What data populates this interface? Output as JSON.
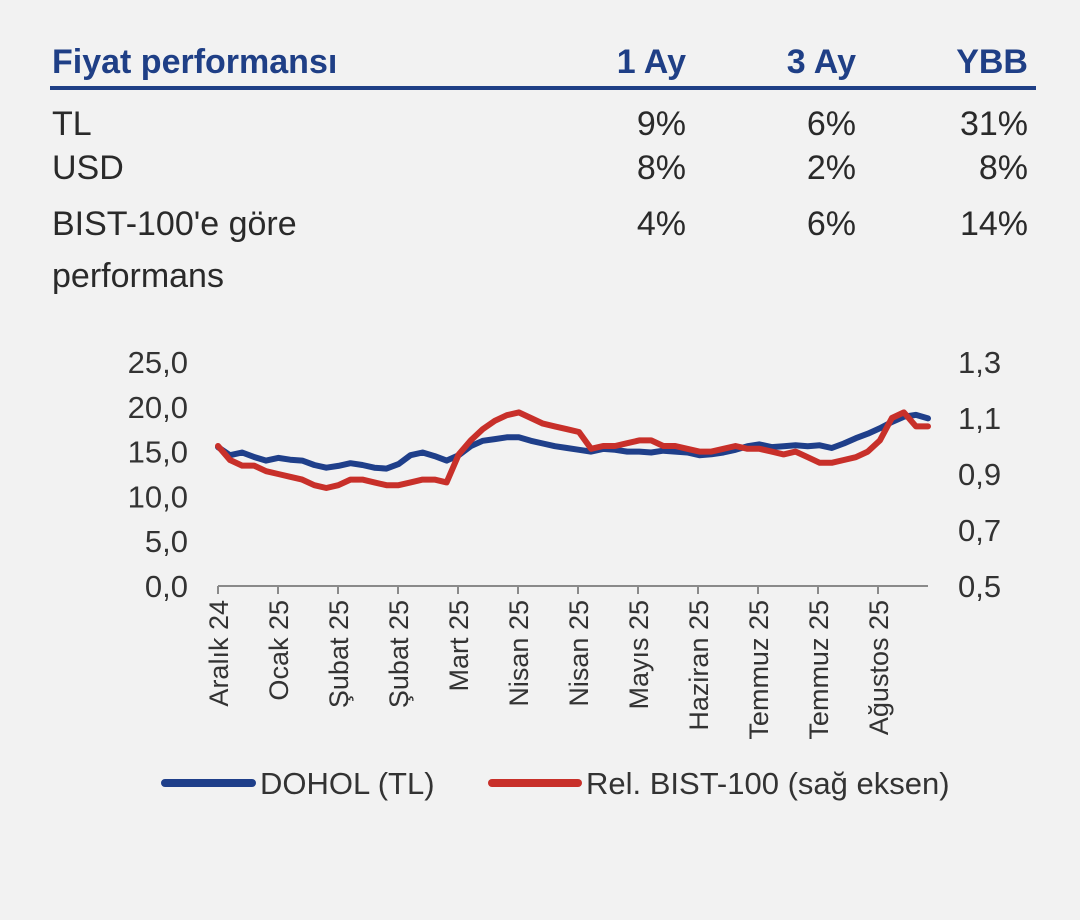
{
  "table": {
    "header": {
      "label": "Fiyat performansı",
      "cols": [
        "1 Ay",
        "3 Ay",
        "YBB"
      ]
    },
    "rows": [
      {
        "label": "TL",
        "values": [
          "9%",
          "6%",
          "31%"
        ]
      },
      {
        "label": "USD",
        "values": [
          "8%",
          "2%",
          "8%"
        ]
      },
      {
        "label": "BIST-100'e göre performans",
        "values": [
          "4%",
          "6%",
          "14%"
        ]
      }
    ]
  },
  "chart_data": {
    "type": "line",
    "x_tick_labels": [
      "Aralık 24",
      "Ocak 25",
      "Şubat 25",
      "Şubat 25",
      "Mart 25",
      "Nisan 25",
      "Nisan 25",
      "Mayıs 25",
      "Haziran 25",
      "Temmuz 25",
      "Temmuz 25",
      "Ağustos 25"
    ],
    "y_left": {
      "ticks": [
        "25,0",
        "20,0",
        "15,0",
        "10,0",
        "5,0",
        "0,0"
      ],
      "range": [
        0,
        25
      ]
    },
    "y_right": {
      "ticks": [
        "1,3",
        "1,1",
        "0,9",
        "0,7",
        "0,5"
      ],
      "range": [
        0.5,
        1.3
      ]
    },
    "grid": false,
    "legend_position": "bottom",
    "colors": {
      "dohol": "#1f3f8a",
      "rel": "#c8302a"
    },
    "series": [
      {
        "name": "DOHOL (TL)",
        "axis": "left",
        "x": [
          0,
          0.2,
          0.4,
          0.6,
          0.8,
          1.0,
          1.2,
          1.4,
          1.6,
          1.8,
          2.0,
          2.2,
          2.4,
          2.6,
          2.8,
          3.0,
          3.2,
          3.4,
          3.6,
          3.8,
          4.0,
          4.2,
          4.4,
          4.6,
          4.8,
          5.0,
          5.2,
          5.4,
          5.6,
          5.8,
          6.0,
          6.2,
          6.4,
          6.6,
          6.8,
          7.0,
          7.2,
          7.4,
          7.6,
          7.8,
          8.0,
          8.2,
          8.4,
          8.6,
          8.8,
          9.0,
          9.2,
          9.4,
          9.6,
          9.8,
          10.0,
          10.2,
          10.4,
          10.6,
          10.8,
          11.0,
          11.2,
          11.4,
          11.6,
          11.8
        ],
        "values": [
          15.5,
          14.6,
          14.9,
          14.4,
          14.0,
          14.3,
          14.1,
          14.0,
          13.5,
          13.2,
          13.4,
          13.7,
          13.5,
          13.2,
          13.1,
          13.6,
          14.6,
          14.9,
          14.5,
          14.0,
          14.6,
          15.6,
          16.2,
          16.4,
          16.6,
          16.6,
          16.2,
          15.9,
          15.6,
          15.4,
          15.2,
          15.0,
          15.3,
          15.2,
          15.0,
          15.0,
          14.9,
          15.1,
          15.0,
          14.9,
          14.6,
          14.7,
          14.9,
          15.2,
          15.6,
          15.8,
          15.5,
          15.6,
          15.7,
          15.6,
          15.7,
          15.4,
          15.9,
          16.5,
          17.0,
          17.6,
          18.3,
          18.9,
          19.1,
          18.7
        ]
      },
      {
        "name": "Rel. BIST-100 (sağ eksen)",
        "axis": "right",
        "x": [
          0,
          0.2,
          0.4,
          0.6,
          0.8,
          1.0,
          1.2,
          1.4,
          1.6,
          1.8,
          2.0,
          2.2,
          2.4,
          2.6,
          2.8,
          3.0,
          3.2,
          3.4,
          3.6,
          3.8,
          4.0,
          4.2,
          4.4,
          4.6,
          4.8,
          5.0,
          5.2,
          5.4,
          5.6,
          5.8,
          6.0,
          6.2,
          6.4,
          6.6,
          6.8,
          7.0,
          7.2,
          7.4,
          7.6,
          7.8,
          8.0,
          8.2,
          8.4,
          8.6,
          8.8,
          9.0,
          9.2,
          9.4,
          9.6,
          9.8,
          10.0,
          10.2,
          10.4,
          10.6,
          10.8,
          11.0,
          11.2,
          11.4,
          11.6,
          11.8
        ],
        "values": [
          1.0,
          0.95,
          0.93,
          0.93,
          0.91,
          0.9,
          0.89,
          0.88,
          0.86,
          0.85,
          0.86,
          0.88,
          0.88,
          0.87,
          0.86,
          0.86,
          0.87,
          0.88,
          0.88,
          0.87,
          0.97,
          1.02,
          1.06,
          1.09,
          1.11,
          1.12,
          1.1,
          1.08,
          1.07,
          1.06,
          1.05,
          0.99,
          1.0,
          1.0,
          1.01,
          1.02,
          1.02,
          1.0,
          1.0,
          0.99,
          0.98,
          0.98,
          0.99,
          1.0,
          0.99,
          0.99,
          0.98,
          0.97,
          0.98,
          0.96,
          0.94,
          0.94,
          0.95,
          0.96,
          0.98,
          1.02,
          1.1,
          1.12,
          1.07,
          1.07
        ]
      }
    ]
  }
}
